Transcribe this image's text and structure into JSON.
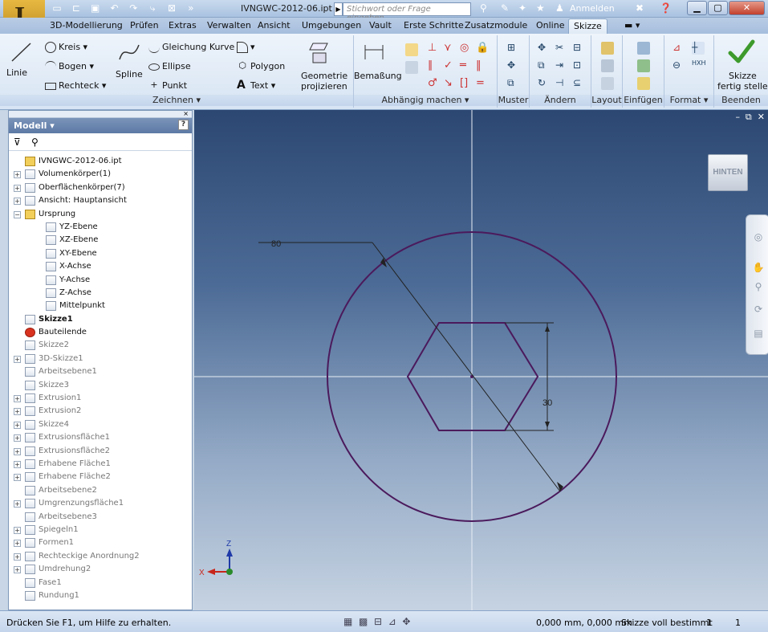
{
  "titlebar": {
    "document_title": "IVNGWC-2012-06.ipt",
    "search_placeholder": "Stichwort oder Frage eingeben",
    "signin_label": "Anmelden"
  },
  "tabs": [
    {
      "label": "3D-Modellierung"
    },
    {
      "label": "Prüfen"
    },
    {
      "label": "Extras"
    },
    {
      "label": "Verwalten"
    },
    {
      "label": "Ansicht"
    },
    {
      "label": "Umgebungen"
    },
    {
      "label": "Vault"
    },
    {
      "label": "Erste Schritte"
    },
    {
      "label": "Zusatzmodule"
    },
    {
      "label": "Online"
    },
    {
      "label": "Skizze"
    }
  ],
  "ribbon": {
    "zeichnen": {
      "label": "Zeichnen ▾",
      "linie": "Linie",
      "kreis": "Kreis ▾",
      "bogen": "Bogen ▾",
      "rechteck": "Rechteck ▾",
      "spline": "Spline",
      "gleichung": "Gleichung Kurve",
      "ellipse": "Ellipse",
      "punkt": "Punkt",
      "polygon": "Polygon",
      "text": "Text ▾",
      "geometrie_1": "Geometrie",
      "geometrie_2": "projizieren"
    },
    "abhaengig": {
      "label": "Abhängig machen ▾",
      "bemassung": "Bemaßung"
    },
    "muster": {
      "label": "Muster"
    },
    "aendern": {
      "label": "Ändern"
    },
    "layout": {
      "label": "Layout"
    },
    "einfuegen": {
      "label": "Einfügen"
    },
    "format": {
      "label": "Format ▾"
    },
    "beenden": {
      "label": "Beenden",
      "finish_1": "Skizze",
      "finish_2": "fertig stellen"
    }
  },
  "browser": {
    "title": "Modell ▾",
    "tree": [
      {
        "label": "IVNGWC-2012-06.ipt",
        "level": 0,
        "exp": "",
        "style": ""
      },
      {
        "label": "Volumenkörper(1)",
        "level": 0,
        "exp": "+",
        "style": ""
      },
      {
        "label": "Oberflächenkörper(7)",
        "level": 0,
        "exp": "+",
        "style": ""
      },
      {
        "label": "Ansicht: Hauptansicht",
        "level": 0,
        "exp": "+",
        "style": ""
      },
      {
        "label": "Ursprung",
        "level": 0,
        "exp": "−",
        "style": ""
      },
      {
        "label": "YZ-Ebene",
        "level": 1,
        "exp": "",
        "style": ""
      },
      {
        "label": "XZ-Ebene",
        "level": 1,
        "exp": "",
        "style": ""
      },
      {
        "label": "XY-Ebene",
        "level": 1,
        "exp": "",
        "style": ""
      },
      {
        "label": "X-Achse",
        "level": 1,
        "exp": "",
        "style": ""
      },
      {
        "label": "Y-Achse",
        "level": 1,
        "exp": "",
        "style": ""
      },
      {
        "label": "Z-Achse",
        "level": 1,
        "exp": "",
        "style": ""
      },
      {
        "label": "Mittelpunkt",
        "level": 1,
        "exp": "",
        "style": ""
      },
      {
        "label": "Skizze1",
        "level": 0,
        "exp": "",
        "style": "bold"
      },
      {
        "label": "Bauteilende",
        "level": 0,
        "exp": "",
        "style": "end"
      },
      {
        "label": "Skizze2",
        "level": 0,
        "exp": "",
        "style": "dim"
      },
      {
        "label": "3D-Skizze1",
        "level": 0,
        "exp": "+",
        "style": "dim"
      },
      {
        "label": "Arbeitsebene1",
        "level": 0,
        "exp": "",
        "style": "dim"
      },
      {
        "label": "Skizze3",
        "level": 0,
        "exp": "",
        "style": "dim"
      },
      {
        "label": "Extrusion1",
        "level": 0,
        "exp": "+",
        "style": "dim"
      },
      {
        "label": "Extrusion2",
        "level": 0,
        "exp": "+",
        "style": "dim"
      },
      {
        "label": "Skizze4",
        "level": 0,
        "exp": "+",
        "style": "dim"
      },
      {
        "label": "Extrusionsfläche1",
        "level": 0,
        "exp": "+",
        "style": "dim"
      },
      {
        "label": "Extrusionsfläche2",
        "level": 0,
        "exp": "+",
        "style": "dim"
      },
      {
        "label": "Erhabene Fläche1",
        "level": 0,
        "exp": "+",
        "style": "dim"
      },
      {
        "label": "Erhabene Fläche2",
        "level": 0,
        "exp": "+",
        "style": "dim"
      },
      {
        "label": "Arbeitsebene2",
        "level": 0,
        "exp": "",
        "style": "dim"
      },
      {
        "label": "Umgrenzungsfläche1",
        "level": 0,
        "exp": "+",
        "style": "dim"
      },
      {
        "label": "Arbeitsebene3",
        "level": 0,
        "exp": "",
        "style": "dim"
      },
      {
        "label": "Spiegeln1",
        "level": 0,
        "exp": "+",
        "style": "dim"
      },
      {
        "label": "Formen1",
        "level": 0,
        "exp": "+",
        "style": "dim"
      },
      {
        "label": "Rechteckige Anordnung2",
        "level": 0,
        "exp": "+",
        "style": "dim"
      },
      {
        "label": "Umdrehung2",
        "level": 0,
        "exp": "+",
        "style": "dim"
      },
      {
        "label": "Fase1",
        "level": 0,
        "exp": "",
        "style": "dim"
      },
      {
        "label": "Rundung1",
        "level": 0,
        "exp": "",
        "style": "dim"
      }
    ]
  },
  "viewport": {
    "viewcube_label": "HINTEN",
    "dim_diameter": "80",
    "dim_hex": "30",
    "axis_x": "X",
    "axis_z": "Z",
    "sketch_color": "#4b1a5c"
  },
  "statusbar": {
    "help": "Drücken Sie F1, um Hilfe zu erhalten.",
    "coords": "0,000 mm, 0,000 mm",
    "state": "Skizze voll bestimmt",
    "n1": "1",
    "n2": "1"
  }
}
